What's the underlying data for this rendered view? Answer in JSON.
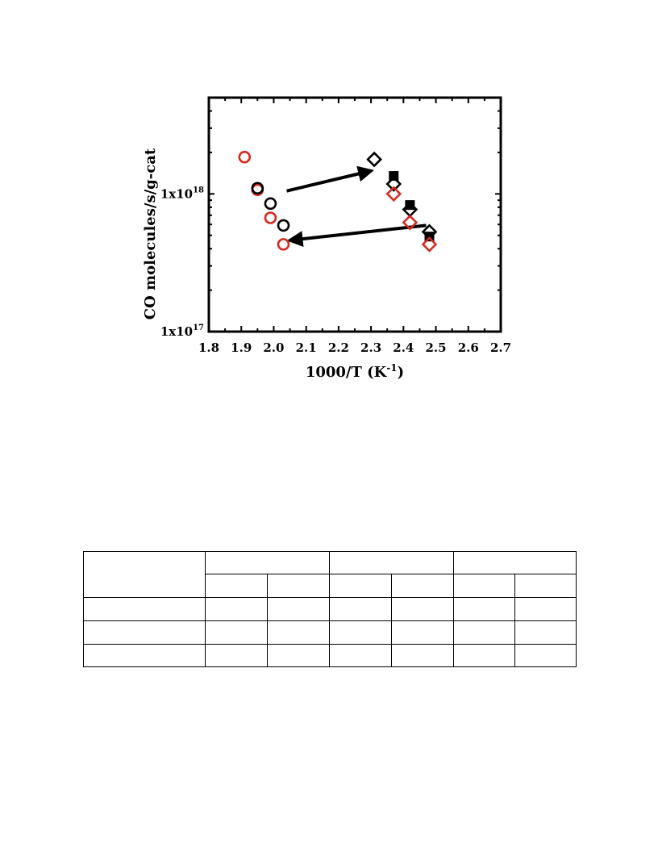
{
  "chart_data": {
    "type": "scatter",
    "xlabel": "1000/T (K",
    "xlabel_sup": "-1",
    "xlabel_suffix": ")",
    "ylabel": "CO molecules/s/g-cat",
    "xlim": [
      1.8,
      2.7
    ],
    "ylim": [
      1e+17,
      5e+18
    ],
    "yscale": "log",
    "grid": false,
    "x_ticks": [
      "1.8",
      "1.9",
      "2.0",
      "2.1",
      "2.2",
      "2.3",
      "2.4",
      "2.5",
      "2.6",
      "2.7"
    ],
    "y_ticks": [
      {
        "value": 1e+17,
        "base": "1x10",
        "exp": "17"
      },
      {
        "value": 1e+18,
        "base": "1x10",
        "exp": "18"
      }
    ],
    "series": [
      {
        "marker": "circle-open",
        "color": "#d42a20",
        "points": [
          [
            1.91,
            1.85e+18
          ],
          [
            1.95,
            1.07e+18
          ],
          [
            1.99,
            6.7e+17
          ],
          [
            2.03,
            4.3e+17
          ]
        ]
      },
      {
        "marker": "circle-open",
        "color": "#000000",
        "points": [
          [
            1.95,
            1.1e+18
          ],
          [
            1.99,
            8.5e+17
          ],
          [
            2.03,
            5.9e+17
          ]
        ]
      },
      {
        "marker": "diamond-open",
        "color": "#000000",
        "points": [
          [
            2.31,
            1.78e+18
          ],
          [
            2.37,
            1.18e+18
          ],
          [
            2.42,
            7.7e+17
          ],
          [
            2.48,
            5.3e+17
          ]
        ]
      },
      {
        "marker": "square-filled",
        "color": "#000000",
        "points": [
          [
            2.37,
            1.35e+18
          ],
          [
            2.42,
            8.3e+17
          ],
          [
            2.48,
            4.9e+17
          ]
        ]
      },
      {
        "marker": "diamond-open",
        "color": "#d42a20",
        "points": [
          [
            2.37,
            1e+18
          ],
          [
            2.42,
            6.2e+17
          ],
          [
            2.48,
            4.3e+17
          ]
        ]
      }
    ],
    "annotations": [
      {
        "type": "arrow",
        "from": [
          2.04,
          1.05e+18
        ],
        "to": [
          2.3,
          1.47e+18
        ]
      },
      {
        "type": "arrow",
        "from": [
          2.47,
          5.9e+17
        ],
        "to": [
          2.05,
          4.6e+17
        ]
      }
    ]
  },
  "table": {
    "rows": [
      [
        "",
        "",
        "",
        "",
        "",
        "",
        ""
      ],
      [
        "",
        "",
        "",
        "",
        "",
        "",
        ""
      ],
      [
        "",
        "",
        "",
        "",
        "",
        "",
        ""
      ],
      [
        "",
        "",
        "",
        "",
        "",
        "",
        ""
      ],
      [
        "",
        "",
        "",
        "",
        "",
        "",
        ""
      ]
    ]
  }
}
